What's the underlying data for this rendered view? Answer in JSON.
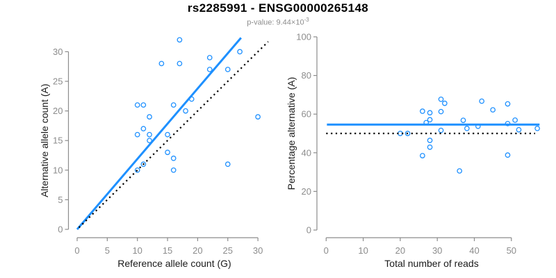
{
  "header": {
    "title": "rs2285991 - ENSG00000265148",
    "subtitle_base": "p-value: 9.44×10",
    "subtitle_exponent": "-3"
  },
  "colors": {
    "accent": "#1e90ff",
    "axis": "#8c8c8c",
    "tick_label": "#8c8c8c",
    "axis_title": "#1a1a1a",
    "title": "#000000",
    "subtitle": "#8e8e8e",
    "reference_line": "#000000"
  },
  "chart_data": [
    {
      "type": "scatter",
      "xlabel": "Reference allele count (G)",
      "ylabel": "Alternative allele count (A)",
      "xticks": [
        0,
        5,
        10,
        15,
        20,
        25,
        30
      ],
      "yticks": [
        0,
        5,
        10,
        15,
        20,
        25,
        30
      ],
      "xlim": [
        0,
        32
      ],
      "ylim": [
        0,
        32.5
      ],
      "grid": false,
      "legend": "none",
      "points": [
        [
          10,
          10
        ],
        [
          11,
          11
        ],
        [
          10,
          16
        ],
        [
          16,
          10
        ],
        [
          12,
          15
        ],
        [
          11,
          17
        ],
        [
          12,
          16
        ],
        [
          15,
          13
        ],
        [
          16,
          12
        ],
        [
          10,
          21
        ],
        [
          12,
          19
        ],
        [
          15,
          16
        ],
        [
          11,
          21
        ],
        [
          25,
          11
        ],
        [
          16,
          21
        ],
        [
          18,
          20
        ],
        [
          19,
          22
        ],
        [
          14,
          28
        ],
        [
          17,
          28
        ],
        [
          17,
          32
        ],
        [
          22,
          27
        ],
        [
          30,
          19
        ],
        [
          22,
          29
        ],
        [
          25,
          27
        ],
        [
          27,
          30
        ]
      ],
      "lines": [
        {
          "name": "fit-line",
          "style": "solid",
          "color": "#1e90ff",
          "width": 3,
          "from": [
            0,
            0
          ],
          "to": [
            27.2,
            32.35
          ]
        },
        {
          "name": "identity-line",
          "style": "dotted",
          "color": "#000000",
          "width": 2.2,
          "from": [
            0.3,
            0.3
          ],
          "to": [
            31.7,
            31.7
          ]
        }
      ]
    },
    {
      "type": "scatter",
      "xlabel": "Total number of reads",
      "ylabel": "Percentage alternative (A)",
      "xticks": [
        0,
        10,
        20,
        30,
        40,
        50
      ],
      "yticks": [
        0,
        20,
        40,
        60,
        80,
        100
      ],
      "xlim": [
        0,
        58
      ],
      "ylim": [
        0,
        100
      ],
      "grid": false,
      "legend": "none",
      "points": [
        [
          20,
          50
        ],
        [
          22,
          50
        ],
        [
          26,
          61.5
        ],
        [
          26,
          38.5
        ],
        [
          27,
          55.6
        ],
        [
          28,
          60.7
        ],
        [
          28,
          57.1
        ],
        [
          28,
          46.4
        ],
        [
          28,
          42.9
        ],
        [
          31,
          67.7
        ],
        [
          31,
          61.3
        ],
        [
          31,
          51.6
        ],
        [
          32,
          65.6
        ],
        [
          36,
          30.6
        ],
        [
          37,
          56.8
        ],
        [
          38,
          52.6
        ],
        [
          41,
          53.7
        ],
        [
          42,
          66.7
        ],
        [
          45,
          62.2
        ],
        [
          49,
          65.3
        ],
        [
          49,
          55.1
        ],
        [
          49,
          38.8
        ],
        [
          51,
          56.9
        ],
        [
          52,
          51.9
        ],
        [
          57,
          52.6
        ]
      ],
      "lines": [
        {
          "name": "mean-percentage-line",
          "style": "solid",
          "color": "#1e90ff",
          "width": 3,
          "from": [
            0.2,
            54.6
          ],
          "to": [
            57.6,
            54.6
          ]
        },
        {
          "name": "fifty-percent-line",
          "style": "dotted",
          "color": "#000000",
          "width": 2.2,
          "from": [
            0,
            50
          ],
          "to": [
            56.4,
            50
          ]
        }
      ]
    }
  ]
}
